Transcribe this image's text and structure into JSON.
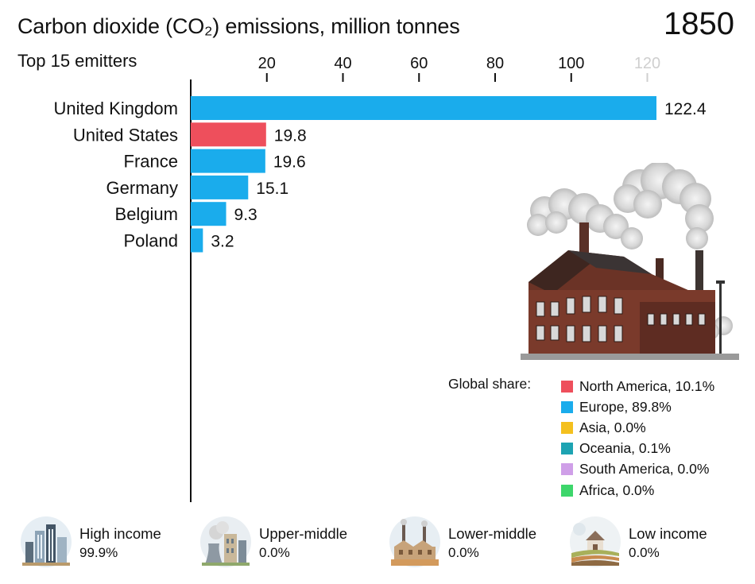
{
  "header": {
    "title": "Carbon dioxide (CO₂) emissions, million tonnes",
    "year": "1850",
    "subtitle": "Top 15 emitters"
  },
  "chart_data": {
    "type": "bar",
    "orientation": "horizontal",
    "title": "Carbon dioxide (CO₂) emissions, million tonnes",
    "categories": [
      "United Kingdom",
      "United States",
      "France",
      "Germany",
      "Belgium",
      "Poland"
    ],
    "values": [
      122.4,
      19.8,
      19.6,
      15.1,
      9.3,
      3.2
    ],
    "value_labels": [
      "122.4",
      "19.8",
      "19.6",
      "15.1",
      "9.3",
      "3.2"
    ],
    "bar_colors": [
      "#1aacec",
      "#ee4f5c",
      "#1aacec",
      "#1aacec",
      "#1aacec",
      "#1aacec"
    ],
    "x_ticks": [
      20,
      40,
      60,
      80,
      100,
      120
    ],
    "xlim": [
      0,
      122.4
    ],
    "axis_position": "top",
    "grid": false
  },
  "legend": {
    "label": "Global share:",
    "items": [
      {
        "text": "North America, 10.1%",
        "color": "#ee4f5c"
      },
      {
        "text": "Europe, 89.8%",
        "color": "#1aacec"
      },
      {
        "text": "Asia, 0.0%",
        "color": "#f4c01e"
      },
      {
        "text": "Oceania, 0.1%",
        "color": "#1da3b2"
      },
      {
        "text": "South America, 0.0%",
        "color": "#cf9fe8"
      },
      {
        "text": "Africa, 0.0%",
        "color": "#3dd66b"
      }
    ]
  },
  "income_groups": [
    {
      "label": "High income",
      "value": "99.9%",
      "icon": "city-skyline-icon"
    },
    {
      "label": "Upper-middle",
      "value": "0.0%",
      "icon": "power-plant-icon"
    },
    {
      "label": "Lower-middle",
      "value": "0.0%",
      "icon": "factory-icon"
    },
    {
      "label": "Low income",
      "value": "0.0%",
      "icon": "farm-barn-icon"
    }
  ],
  "colors": {
    "europe": "#1aacec",
    "north_america": "#ee4f5c",
    "axis": "#111111",
    "last_tick": "#cfcfcf"
  },
  "illustration": {
    "icon": "smoking-factory-icon"
  }
}
